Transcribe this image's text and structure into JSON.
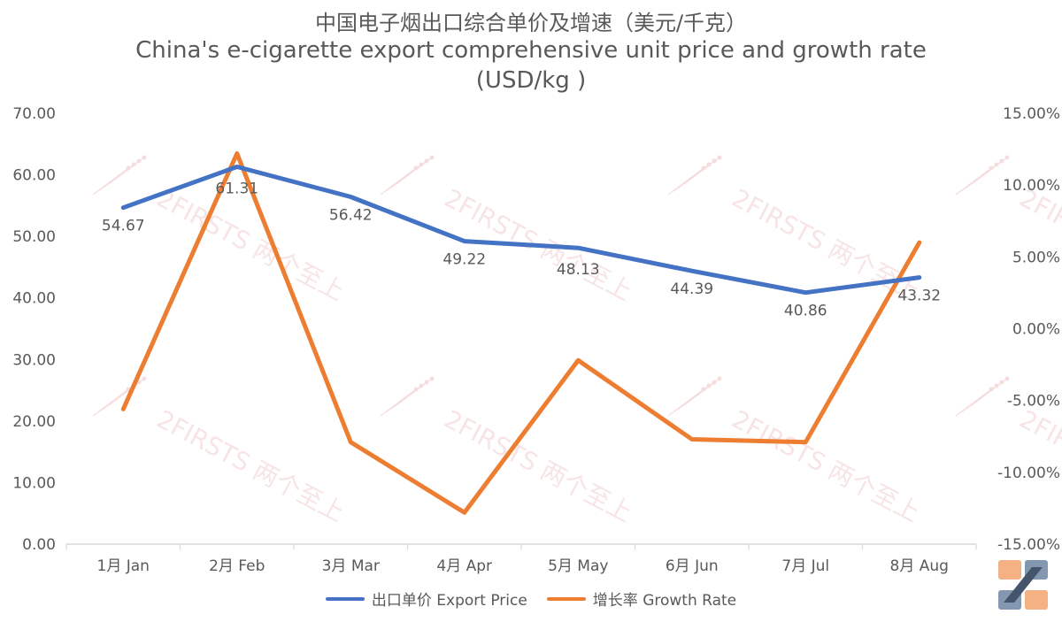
{
  "title": {
    "zh": "中国电子烟出口综合单价及增速（美元/千克）",
    "en_line1": "China's e-cigarette export comprehensive unit price and growth rate",
    "en_line2": "(USD/kg )"
  },
  "watermark": "2FIRSTS 两个至上",
  "colors": {
    "price": "#4472C4",
    "growth": "#ED7D31",
    "axis": "#D9D9D9",
    "text": "#595959"
  },
  "chart_data": {
    "type": "line",
    "categories": [
      "1月 Jan",
      "2月 Feb",
      "3月 Mar",
      "4月 Apr",
      "5月 May",
      "6月 Jun",
      "7月 Jul",
      "8月 Aug"
    ],
    "series": [
      {
        "name": "出口单价 Export Price",
        "axis": "left",
        "values": [
          54.67,
          61.31,
          56.42,
          49.22,
          48.13,
          44.39,
          40.86,
          43.32
        ],
        "labels": [
          "54.67",
          "61.31",
          "56.42",
          "49.22",
          "48.13",
          "44.39",
          "40.86",
          "43.32"
        ]
      },
      {
        "name": "增长率 Growth Rate",
        "axis": "right",
        "values": [
          -5.6,
          12.2,
          -7.9,
          -12.8,
          -2.2,
          -7.7,
          -7.9,
          6.0
        ]
      }
    ],
    "y_left": {
      "min": 0,
      "max": 70,
      "step": 10,
      "tick_labels": [
        "0.00",
        "10.00",
        "20.00",
        "30.00",
        "40.00",
        "50.00",
        "60.00",
        "70.00"
      ]
    },
    "y_right": {
      "min": -15,
      "max": 15,
      "step": 5,
      "tick_labels": [
        "-15.00%",
        "-10.00%",
        "-5.00%",
        "0.00%",
        "5.00%",
        "10.00%",
        "15.00%"
      ]
    },
    "legend": "bottom",
    "grid": false
  }
}
